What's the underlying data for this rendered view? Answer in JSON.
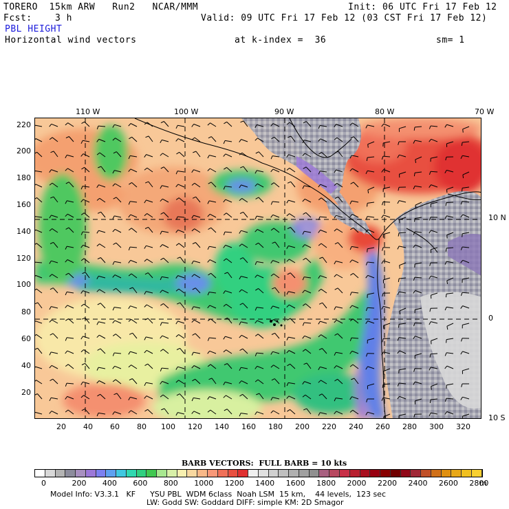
{
  "header": {
    "line1_left": "TORERO  15km ARW   Run2   NCAR/MMM",
    "line1_right": "Init: 06 UTC Fri 17 Feb 12",
    "line2_left": "Fcst:    3 h",
    "line2_right": "Valid: 09 UTC Fri 17 Feb 12 (03 CST Fri 17 Feb 12)",
    "field_name": "PBL HEIGHT",
    "line4_left": "Horizontal wind vectors",
    "line4_mid": "at k-index =  36",
    "line4_right": "sm= 1"
  },
  "map": {
    "top_longitudes": [
      "110 W",
      "100 W",
      "90 W",
      "80 W",
      "70 W"
    ],
    "right_latitudes": [
      "10 N",
      "0",
      "10 S"
    ],
    "left_ticks": [
      "220",
      "200",
      "180",
      "160",
      "140",
      "120",
      "100",
      "80",
      "60",
      "40",
      "20"
    ],
    "bottom_ticks": [
      "20",
      "40",
      "60",
      "80",
      "100",
      "120",
      "140",
      "160",
      "180",
      "200",
      "220",
      "240",
      "260",
      "280",
      "300",
      "320"
    ]
  },
  "legend": {
    "barb_title": "BARB VECTORS:  FULL BARB = 10 kts",
    "unit": "m",
    "labels": [
      "0",
      "200",
      "400",
      "600",
      "800",
      "1000",
      "1200",
      "1400",
      "1600",
      "1800",
      "2000",
      "2200",
      "2400",
      "2600",
      "2800"
    ],
    "colors": [
      "#ffffff",
      "#d8d8d8",
      "#b4b4b4",
      "#8c8c9c",
      "#a890c0",
      "#9c78d8",
      "#7c80f0",
      "#5ea0f0",
      "#40c8e0",
      "#30d8b0",
      "#30d080",
      "#40c850",
      "#a8e890",
      "#d8f0a8",
      "#f8f0b0",
      "#f8d8a0",
      "#f8b888",
      "#f89878",
      "#f07058",
      "#e85040",
      "#e03030",
      "#f0f0f0",
      "#e0e0e0",
      "#d0d0d0",
      "#c0c0c0",
      "#b0b0b0",
      "#a0a0a0",
      "#909090",
      "#a86080",
      "#b84860",
      "#c83048",
      "#b82030",
      "#a81020",
      "#980010",
      "#880000",
      "#700000",
      "#900818",
      "#a02838",
      "#c05028",
      "#d07018",
      "#e09010",
      "#e8a818",
      "#f0c020",
      "#f8d030"
    ]
  },
  "footer": {
    "line1": "Model Info: V3.3.1   KF      YSU PBL  WDM 6class  Noah LSM  15 km,    44 levels,  123 sec",
    "line2": "LW: Godd SW: Goddard DIFF: simple KM: 2D Smagor"
  }
}
